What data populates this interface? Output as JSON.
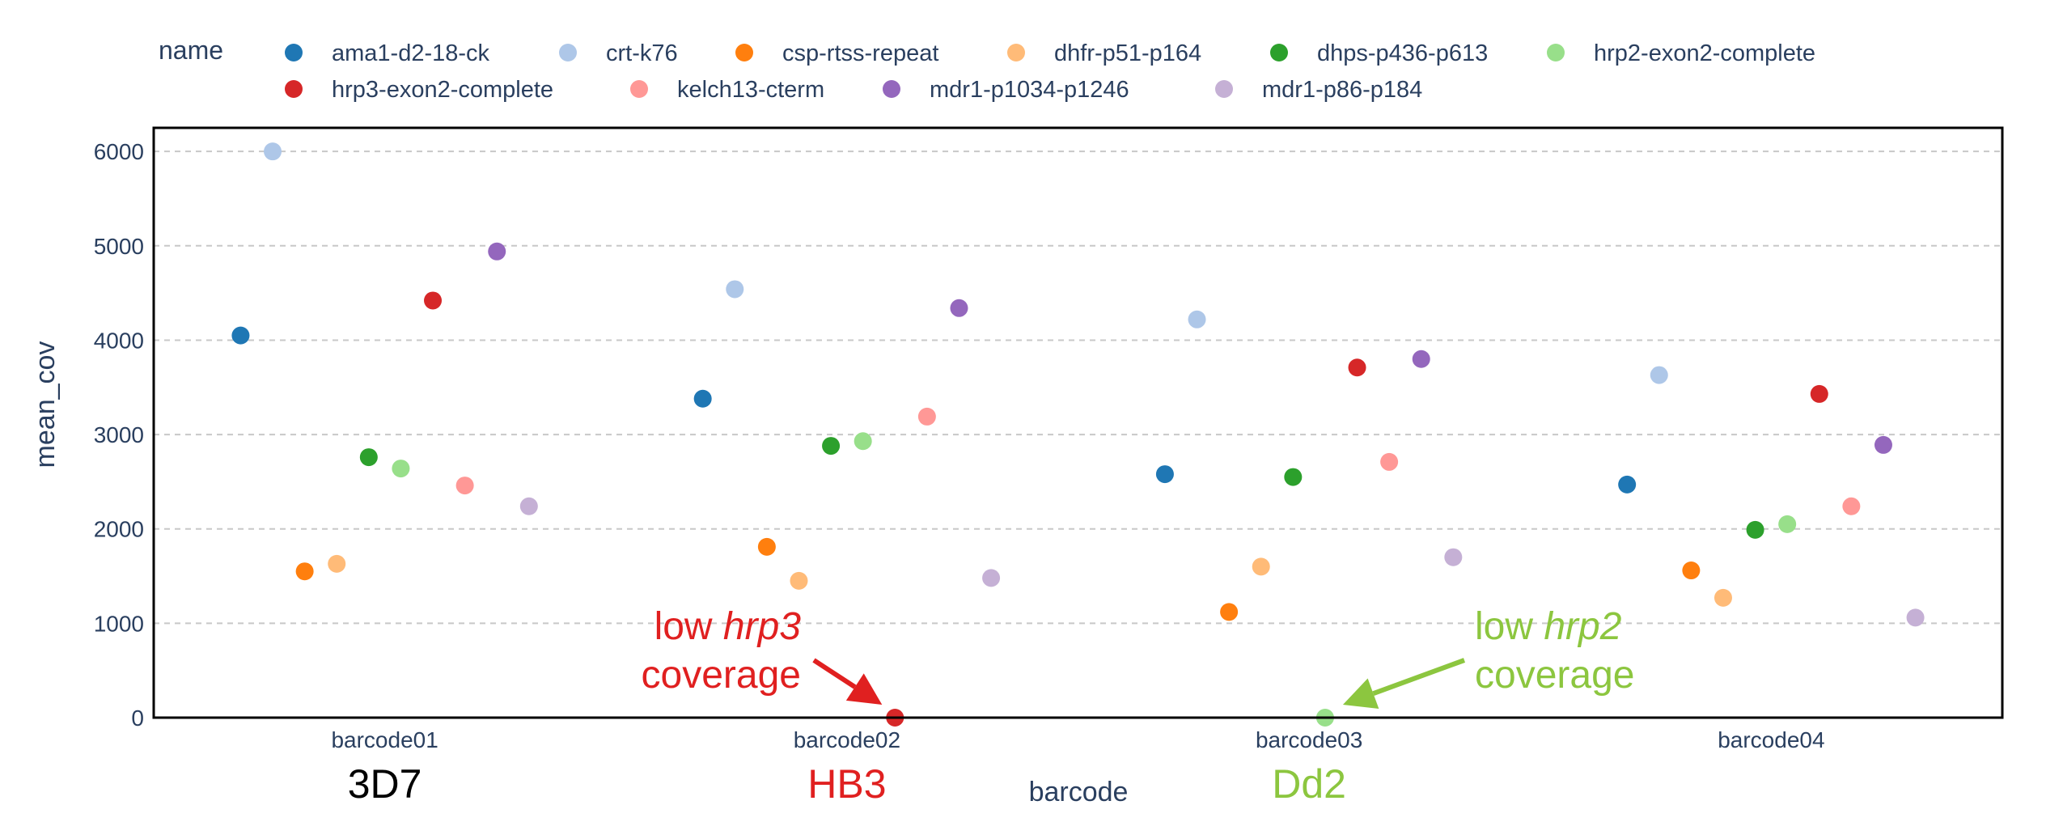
{
  "chart_data": {
    "type": "scatter",
    "legend_title": "name",
    "legend_position": "top",
    "xlabel": "barcode",
    "ylabel": "mean_cov",
    "ylim": [
      0,
      6250
    ],
    "yticks": [
      0,
      1000,
      2000,
      3000,
      4000,
      5000,
      6000
    ],
    "grid": "horizontal-dashed",
    "categories": [
      "barcode01",
      "barcode02",
      "barcode03",
      "barcode04"
    ],
    "strain_labels": [
      {
        "text": "3D7",
        "color": "#000000"
      },
      {
        "text": "HB3",
        "color": "#e02020"
      },
      {
        "text": "Dd2",
        "color": "#8cc63f"
      }
    ],
    "series": [
      {
        "name": "ama1-d2-18-ck",
        "color": "#1f77b4",
        "values": [
          4050,
          3380,
          2580,
          2470
        ]
      },
      {
        "name": "crt-k76",
        "color": "#aec7e8",
        "values": [
          6000,
          4540,
          4220,
          3630
        ]
      },
      {
        "name": "csp-rtss-repeat",
        "color": "#ff7f0e",
        "values": [
          1550,
          1810,
          1120,
          1560
        ]
      },
      {
        "name": "dhfr-p51-p164",
        "color": "#ffbb78",
        "values": [
          1630,
          1450,
          1600,
          1270
        ]
      },
      {
        "name": "dhps-p436-p613",
        "color": "#2ca02c",
        "values": [
          2760,
          2880,
          2550,
          1990
        ]
      },
      {
        "name": "hrp2-exon2-complete",
        "color": "#98df8a",
        "values": [
          2640,
          2930,
          0,
          2050
        ]
      },
      {
        "name": "hrp3-exon2-complete",
        "color": "#d62728",
        "values": [
          4420,
          0,
          3710,
          3430
        ]
      },
      {
        "name": "kelch13-cterm",
        "color": "#ff9896",
        "values": [
          2460,
          3190,
          2710,
          2240
        ]
      },
      {
        "name": "mdr1-p1034-p1246",
        "color": "#9467bd",
        "values": [
          4940,
          4340,
          3800,
          2890
        ]
      },
      {
        "name": "mdr1-p86-p184",
        "color": "#c5b0d5",
        "values": [
          2240,
          1480,
          1700,
          1060
        ]
      }
    ],
    "annotations": [
      {
        "line1_prefix": "low ",
        "line1_gene": "hrp3",
        "line2": "coverage",
        "color": "#e02020",
        "target_series": "hrp3-exon2-complete",
        "target_category": "barcode02"
      },
      {
        "line1_prefix": "low ",
        "line1_gene": "hrp2",
        "line2": "coverage",
        "color": "#8cc63f",
        "target_series": "hrp2-exon2-complete",
        "target_category": "barcode03"
      }
    ]
  }
}
